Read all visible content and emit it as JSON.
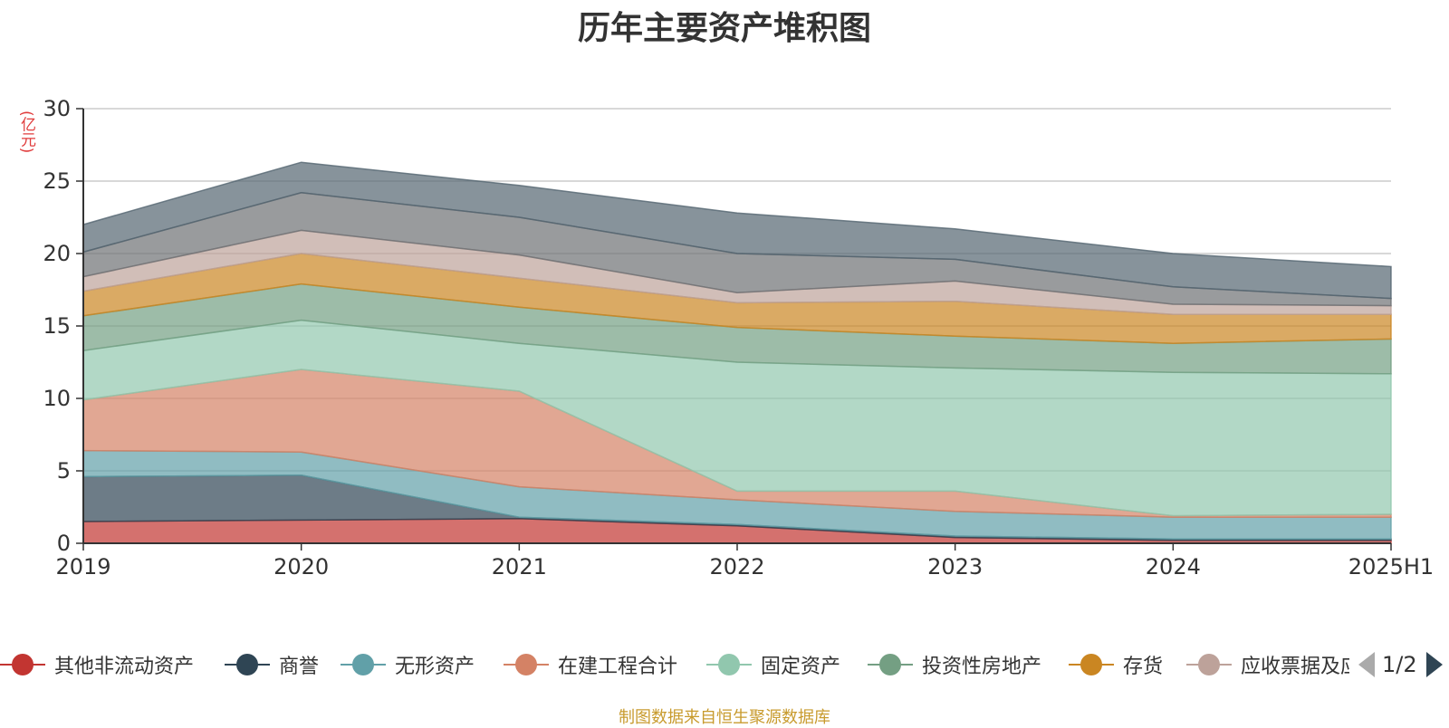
{
  "chart_data": {
    "type": "area",
    "stacked": true,
    "title": "历年主要资产堆积图",
    "unit_label": "(亿元)",
    "categories": [
      "2019",
      "2020",
      "2021",
      "2022",
      "2023",
      "2024",
      "2025H1"
    ],
    "ylim": [
      0,
      30
    ],
    "yticks": [
      0,
      5,
      10,
      15,
      20,
      25,
      30
    ],
    "grid": true,
    "legend_position": "bottom",
    "legend_page": "1/2",
    "series": [
      {
        "name": "其他非流动资产",
        "color": "#c23531",
        "values": [
          1.5,
          1.6,
          1.7,
          1.2,
          0.4,
          0.2,
          0.2
        ]
      },
      {
        "name": "商誉",
        "color": "#2f4554",
        "values": [
          3.1,
          3.1,
          0.1,
          0.1,
          0.1,
          0.1,
          0.1
        ]
      },
      {
        "name": "无形资产",
        "color": "#61a0a8",
        "values": [
          1.8,
          1.6,
          2.1,
          1.7,
          1.7,
          1.5,
          1.5
        ]
      },
      {
        "name": "在建工程合计",
        "color": "#d48265",
        "values": [
          3.5,
          5.7,
          6.6,
          0.6,
          1.4,
          0.1,
          0.2
        ]
      },
      {
        "name": "固定资产",
        "color": "#91c7ae",
        "values": [
          3.4,
          3.4,
          3.3,
          8.9,
          8.5,
          9.9,
          9.7
        ]
      },
      {
        "name": "投资性房地产",
        "color": "#749f83",
        "values": [
          2.4,
          2.5,
          2.5,
          2.4,
          2.2,
          2.0,
          2.4
        ]
      },
      {
        "name": "存货",
        "color": "#ca8622",
        "values": [
          1.7,
          2.1,
          2.0,
          1.7,
          2.4,
          2.0,
          1.7
        ]
      },
      {
        "name": "应收票据及应收账款",
        "color": "#bda29a",
        "values": [
          1.0,
          1.6,
          1.6,
          0.7,
          1.4,
          0.7,
          0.6
        ]
      },
      {
        "name": "",
        "color": "#6e7074",
        "values": [
          1.7,
          2.6,
          2.6,
          2.7,
          1.5,
          1.2,
          0.5
        ]
      },
      {
        "name": "",
        "color": "#546570",
        "values": [
          1.9,
          2.1,
          2.2,
          2.8,
          2.1,
          2.3,
          2.2
        ]
      }
    ]
  },
  "footer": {
    "source": "制图数据来自恒生聚源数据库"
  }
}
